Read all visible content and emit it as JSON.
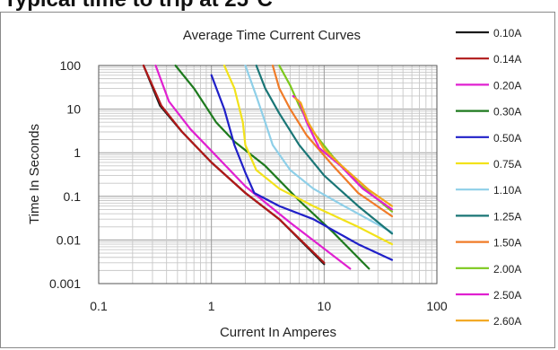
{
  "page": {
    "heading": "Typical time to trip at 25°C"
  },
  "chart_data": {
    "type": "line",
    "title": "Average Time Current Curves",
    "xlabel": "Current In Amperes",
    "ylabel": "Time In Seconds",
    "x_scale": "log",
    "y_scale": "log",
    "xlim": [
      0.1,
      100
    ],
    "ylim": [
      0.001,
      100
    ],
    "x_ticks": [
      0.1,
      1,
      10,
      100
    ],
    "x_tick_labels": [
      "0.1",
      "1",
      "10",
      "100"
    ],
    "y_ticks": [
      0.001,
      0.01,
      0.1,
      1,
      10,
      100
    ],
    "y_tick_labels": [
      "0.001",
      "0.01",
      "0.1",
      "1",
      "10",
      "100"
    ],
    "grid": true,
    "legend_position": "right",
    "series": [
      {
        "name": "0.10A",
        "color": "#1a1a1a",
        "points": [
          [
            0.25,
            100
          ],
          [
            0.35,
            12
          ],
          [
            0.55,
            3
          ],
          [
            1,
            0.6
          ],
          [
            2,
            0.12
          ],
          [
            4,
            0.03
          ],
          [
            10,
            0.0028
          ]
        ]
      },
      {
        "name": "0.14A",
        "color": "#b01818",
        "points": [
          [
            0.25,
            100
          ],
          [
            0.36,
            12
          ],
          [
            0.55,
            3
          ],
          [
            1,
            0.6
          ],
          [
            2,
            0.12
          ],
          [
            4,
            0.03
          ],
          [
            10,
            0.003
          ]
        ]
      },
      {
        "name": "0.20A",
        "color": "#e020d0",
        "points": [
          [
            0.32,
            100
          ],
          [
            0.42,
            15
          ],
          [
            0.65,
            3.5
          ],
          [
            1,
            1.1
          ],
          [
            2,
            0.17
          ],
          [
            5,
            0.025
          ],
          [
            17,
            0.0022
          ]
        ]
      },
      {
        "name": "0.30A",
        "color": "#1e7a1e",
        "points": [
          [
            0.48,
            100
          ],
          [
            0.7,
            30
          ],
          [
            1.1,
            5
          ],
          [
            1.6,
            1.8
          ],
          [
            3,
            0.5
          ],
          [
            6,
            0.08
          ],
          [
            12,
            0.015
          ],
          [
            25,
            0.0022
          ]
        ]
      },
      {
        "name": "0.50A",
        "color": "#2020c8",
        "points": [
          [
            1,
            60
          ],
          [
            1.3,
            10
          ],
          [
            1.6,
            1.5
          ],
          [
            2,
            0.35
          ],
          [
            2.4,
            0.12
          ],
          [
            4,
            0.06
          ],
          [
            8,
            0.03
          ],
          [
            20,
            0.008
          ],
          [
            40,
            0.0035
          ]
        ]
      },
      {
        "name": "0.75A",
        "color": "#f2e21a",
        "points": [
          [
            1.3,
            100
          ],
          [
            1.6,
            30
          ],
          [
            1.9,
            5
          ],
          [
            2,
            1.5
          ],
          [
            2.5,
            0.4
          ],
          [
            4,
            0.15
          ],
          [
            8,
            0.06
          ],
          [
            20,
            0.02
          ],
          [
            40,
            0.008
          ]
        ]
      },
      {
        "name": "1.10A",
        "color": "#8ecfe8",
        "points": [
          [
            2,
            100
          ],
          [
            2.5,
            20
          ],
          [
            3,
            5
          ],
          [
            3.5,
            1.5
          ],
          [
            5,
            0.4
          ],
          [
            8,
            0.15
          ],
          [
            15,
            0.06
          ],
          [
            40,
            0.015
          ]
        ]
      },
      {
        "name": "1.25A",
        "color": "#1a7676",
        "points": [
          [
            2.5,
            100
          ],
          [
            3,
            30
          ],
          [
            4,
            8
          ],
          [
            6,
            1.5
          ],
          [
            10,
            0.3
          ],
          [
            20,
            0.06
          ],
          [
            40,
            0.014
          ]
        ]
      },
      {
        "name": "1.50A",
        "color": "#f07b28",
        "points": [
          [
            3.5,
            100
          ],
          [
            4,
            30
          ],
          [
            5,
            10
          ],
          [
            7,
            2.5
          ],
          [
            12,
            0.5
          ],
          [
            20,
            0.12
          ],
          [
            40,
            0.035
          ]
        ]
      },
      {
        "name": "2.00A",
        "color": "#7cc81c",
        "points": [
          [
            4,
            100
          ],
          [
            5,
            35
          ],
          [
            6,
            12
          ],
          [
            8,
            3
          ],
          [
            12,
            0.8
          ],
          [
            20,
            0.2
          ],
          [
            40,
            0.045
          ]
        ]
      },
      {
        "name": "2.50A",
        "color": "#e020d0",
        "points": [
          [
            5.3,
            20
          ],
          [
            6,
            15
          ],
          [
            7,
            5
          ],
          [
            9,
            1.3
          ],
          [
            14,
            0.5
          ],
          [
            22,
            0.15
          ],
          [
            40,
            0.05
          ]
        ]
      },
      {
        "name": "2.60A",
        "color": "#f2a51a",
        "points": [
          [
            5.5,
            18
          ],
          [
            6.2,
            14
          ],
          [
            7.2,
            5
          ],
          [
            10,
            1.2
          ],
          [
            15,
            0.45
          ],
          [
            25,
            0.14
          ],
          [
            40,
            0.06
          ]
        ]
      }
    ]
  }
}
